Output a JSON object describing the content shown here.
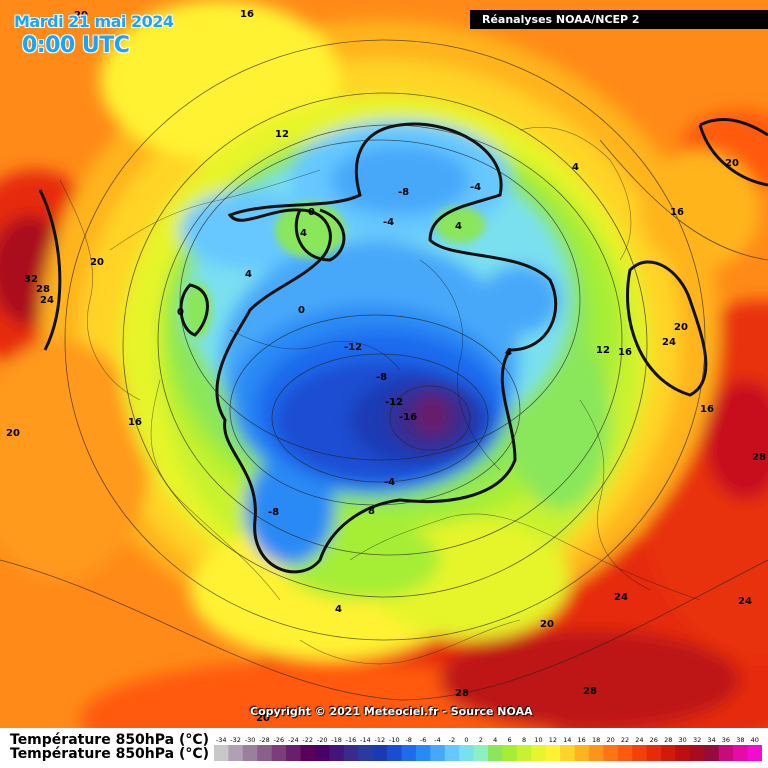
{
  "header": {
    "date": "Mardi 21 mai 2024",
    "time": "0:00 UTC"
  },
  "source": "Réanalyses NOAA/NCEP 2",
  "copyright": "Copyright © 2021 Meteociel.fr - Source NOAA",
  "legend": {
    "title": "Température 850hPa (°C)",
    "ticks": [
      "-34",
      "-32",
      "-30",
      "-28",
      "-26",
      "-24",
      "-22",
      "-20",
      "-18",
      "-16",
      "-14",
      "-12",
      "-10",
      "-8",
      "-6",
      "-4",
      "-2",
      "0",
      "2",
      "4",
      "6",
      "8",
      "10",
      "12",
      "14",
      "16",
      "18",
      "20",
      "22",
      "24",
      "26",
      "28",
      "30",
      "32",
      "34",
      "36",
      "38",
      "40"
    ],
    "colors": [
      "#c8c8c8",
      "#b0a0b4",
      "#9a7f9e",
      "#8a5f8a",
      "#7a3f7a",
      "#6a1f6a",
      "#5a005a",
      "#4a0066",
      "#44147a",
      "#3a2a8c",
      "#2a3aa0",
      "#1a3ab4",
      "#1a4ed2",
      "#1f6aee",
      "#2a8af5",
      "#46a8fa",
      "#66c8ff",
      "#7ae0f0",
      "#8ef0c0",
      "#8ae65a",
      "#a6ee36",
      "#c8f22e",
      "#e6f52c",
      "#fff230",
      "#ffd428",
      "#ffb41e",
      "#ff941a",
      "#ff7414",
      "#ff5a10",
      "#f5400c",
      "#e62a0a",
      "#d21a0a",
      "#be0e10",
      "#aa0a1e",
      "#960a3c",
      "#c80a7a",
      "#e60aa8",
      "#f50ad2"
    ]
  },
  "map_labels": [
    {
      "text": "16"
    },
    {
      "text": "12"
    },
    {
      "text": "-4"
    },
    {
      "text": "-8"
    },
    {
      "text": "-4"
    },
    {
      "text": "4"
    },
    {
      "text": "4"
    },
    {
      "text": "16"
    },
    {
      "text": "20"
    },
    {
      "text": "0"
    },
    {
      "text": "4"
    },
    {
      "text": "4"
    },
    {
      "text": "4"
    },
    {
      "text": "0"
    },
    {
      "text": "0"
    },
    {
      "text": "-12"
    },
    {
      "text": "-8"
    },
    {
      "text": "-12"
    },
    {
      "text": "-16"
    },
    {
      "text": "4"
    },
    {
      "text": "12"
    },
    {
      "text": "16"
    },
    {
      "text": "20"
    },
    {
      "text": "24"
    },
    {
      "text": "16"
    },
    {
      "text": "28"
    },
    {
      "text": "32"
    },
    {
      "text": "28"
    },
    {
      "text": "24"
    },
    {
      "text": "20"
    },
    {
      "text": "20"
    },
    {
      "text": "16"
    },
    {
      "text": "-8"
    },
    {
      "text": "-4"
    },
    {
      "text": "8"
    },
    {
      "text": "4"
    },
    {
      "text": "24"
    },
    {
      "text": "24"
    },
    {
      "text": "20"
    },
    {
      "text": "28"
    },
    {
      "text": "28"
    },
    {
      "text": "20"
    },
    {
      "text": "20"
    }
  ]
}
